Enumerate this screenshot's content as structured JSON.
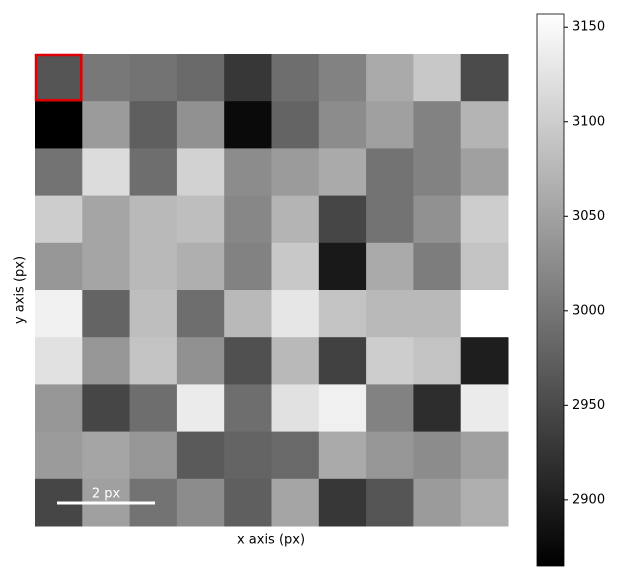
{
  "chart_data": {
    "type": "heatmap",
    "xlabel": "x axis (px)",
    "ylabel": "y axis (px)",
    "colormap": "gray",
    "z": [
      [
        2962,
        3002,
        2997,
        2985,
        2928,
        2991,
        3014,
        3060,
        3094,
        2951
      ],
      [
        2865,
        3042,
        2974,
        3031,
        2876,
        2980,
        3025,
        3048,
        3014,
        3071
      ],
      [
        2997,
        3117,
        2991,
        3105,
        3025,
        3042,
        3060,
        2997,
        3014,
        3048
      ],
      [
        3100,
        3054,
        3077,
        3083,
        3020,
        3071,
        2945,
        2997,
        3031,
        3100
      ],
      [
        3037,
        3054,
        3077,
        3065,
        3014,
        3094,
        2894,
        3060,
        3008,
        3088
      ],
      [
        3140,
        2980,
        3083,
        2991,
        3077,
        3128,
        3088,
        3077,
        3077,
        3157
      ],
      [
        3123,
        3037,
        3088,
        3031,
        2957,
        3077,
        2939,
        3100,
        3088,
        2899
      ],
      [
        3037,
        2945,
        2991,
        3134,
        2991,
        3123,
        3140,
        3014,
        2917,
        3134
      ],
      [
        3042,
        3054,
        3037,
        2968,
        2980,
        2985,
        3060,
        3037,
        3025,
        3048
      ],
      [
        2945,
        3048,
        2997,
        3025,
        2974,
        3054,
        2928,
        2962,
        3042,
        3065
      ]
    ],
    "zlim": [
      2865,
      3157
    ],
    "colorbar_ticks": [
      2900,
      2950,
      3000,
      3050,
      3100,
      3150
    ],
    "highlight": {
      "row": 0,
      "col": 0,
      "color": "#e00000"
    },
    "scalebar_label": "2 px"
  }
}
